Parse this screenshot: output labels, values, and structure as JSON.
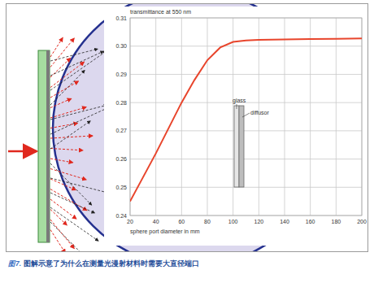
{
  "chart_data": {
    "type": "line",
    "title": "transmittance at 550 nm",
    "x_label": "sphere port diameter in mm",
    "x": [
      20,
      30,
      40,
      50,
      60,
      70,
      80,
      90,
      100,
      110,
      120,
      140,
      160,
      180,
      200
    ],
    "values": [
      0.245,
      0.2535,
      0.262,
      0.271,
      0.28,
      0.288,
      0.295,
      0.2995,
      0.3015,
      0.302,
      0.3022,
      0.3024,
      0.3025,
      0.3026,
      0.3027
    ],
    "color": "#e8452c",
    "xlim": [
      20,
      200
    ],
    "xticks": [
      20,
      40,
      60,
      80,
      100,
      120,
      140,
      160,
      180,
      200
    ],
    "ylim": [
      0.24,
      0.31
    ],
    "yticks": [
      0.24,
      0.25,
      0.26,
      0.27,
      0.28,
      0.29,
      {
        "value": 0.3,
        "label": "0.30"
      },
      0.31
    ],
    "grid": true,
    "annotations": [
      "glass",
      "diffusor"
    ]
  },
  "caption": {
    "number": "图7.",
    "text": "图解示意了为什么在测量光漫射材料时需要大直径端口"
  }
}
